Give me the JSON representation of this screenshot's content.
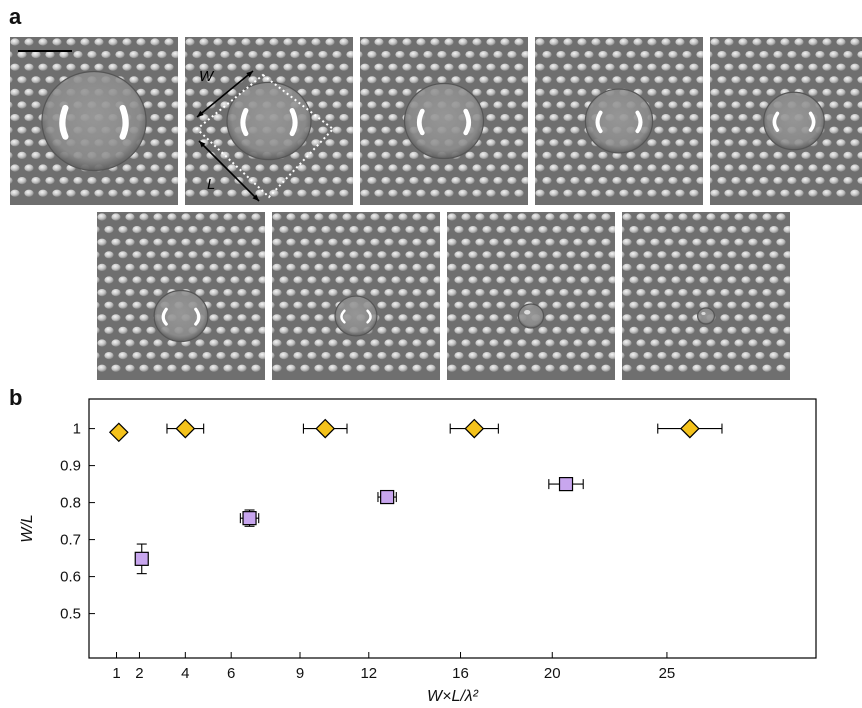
{
  "panels": {
    "a": "a",
    "b": "b"
  },
  "images": {
    "tiles_row1": 5,
    "tiles_row2": 4,
    "annotations": {
      "W": "W",
      "L": "L"
    },
    "drop_sizes": [
      0.62,
      0.5,
      0.47,
      0.4,
      0.36,
      0.32,
      0.25,
      0.15,
      0.1
    ]
  },
  "chart_data": {
    "type": "scatter",
    "xlabel": "W×L/λ²",
    "ylabel": "W/L",
    "xlim": [
      -0.2,
      31.5
    ],
    "ylim": [
      0.38,
      1.08
    ],
    "xticks": [
      1,
      2,
      4,
      6,
      9,
      12,
      16,
      20,
      25
    ],
    "yticks": [
      0.5,
      0.6,
      0.7,
      0.8,
      0.9,
      1
    ],
    "ytick_labels": [
      "0.5",
      "0.6",
      "0.7",
      "0.8",
      "0.9",
      "1"
    ],
    "series": [
      {
        "marker": "diamond",
        "color": "#f4c21b",
        "points": [
          {
            "x": 1.1,
            "y": 0.99,
            "xerr": 0,
            "yerr": 0
          },
          {
            "x": 4.0,
            "y": 1.0,
            "xerr": 0.8,
            "yerr": 0
          },
          {
            "x": 10.1,
            "y": 1.0,
            "xerr": 0.95,
            "yerr": 0
          },
          {
            "x": 16.6,
            "y": 1.0,
            "xerr": 1.05,
            "yerr": 0
          },
          {
            "x": 26.0,
            "y": 1.0,
            "xerr": 1.4,
            "yerr": 0
          }
        ]
      },
      {
        "marker": "square",
        "color": "#c8a6ee",
        "points": [
          {
            "x": 2.1,
            "y": 0.648,
            "xerr": 0,
            "yerr": 0.04
          },
          {
            "x": 6.8,
            "y": 0.758,
            "xerr": 0.4,
            "yerr": 0.022
          },
          {
            "x": 12.8,
            "y": 0.815,
            "xerr": 0.4,
            "yerr": 0.01
          },
          {
            "x": 20.6,
            "y": 0.85,
            "xerr": 0.75,
            "yerr": 0.01
          }
        ]
      }
    ]
  }
}
